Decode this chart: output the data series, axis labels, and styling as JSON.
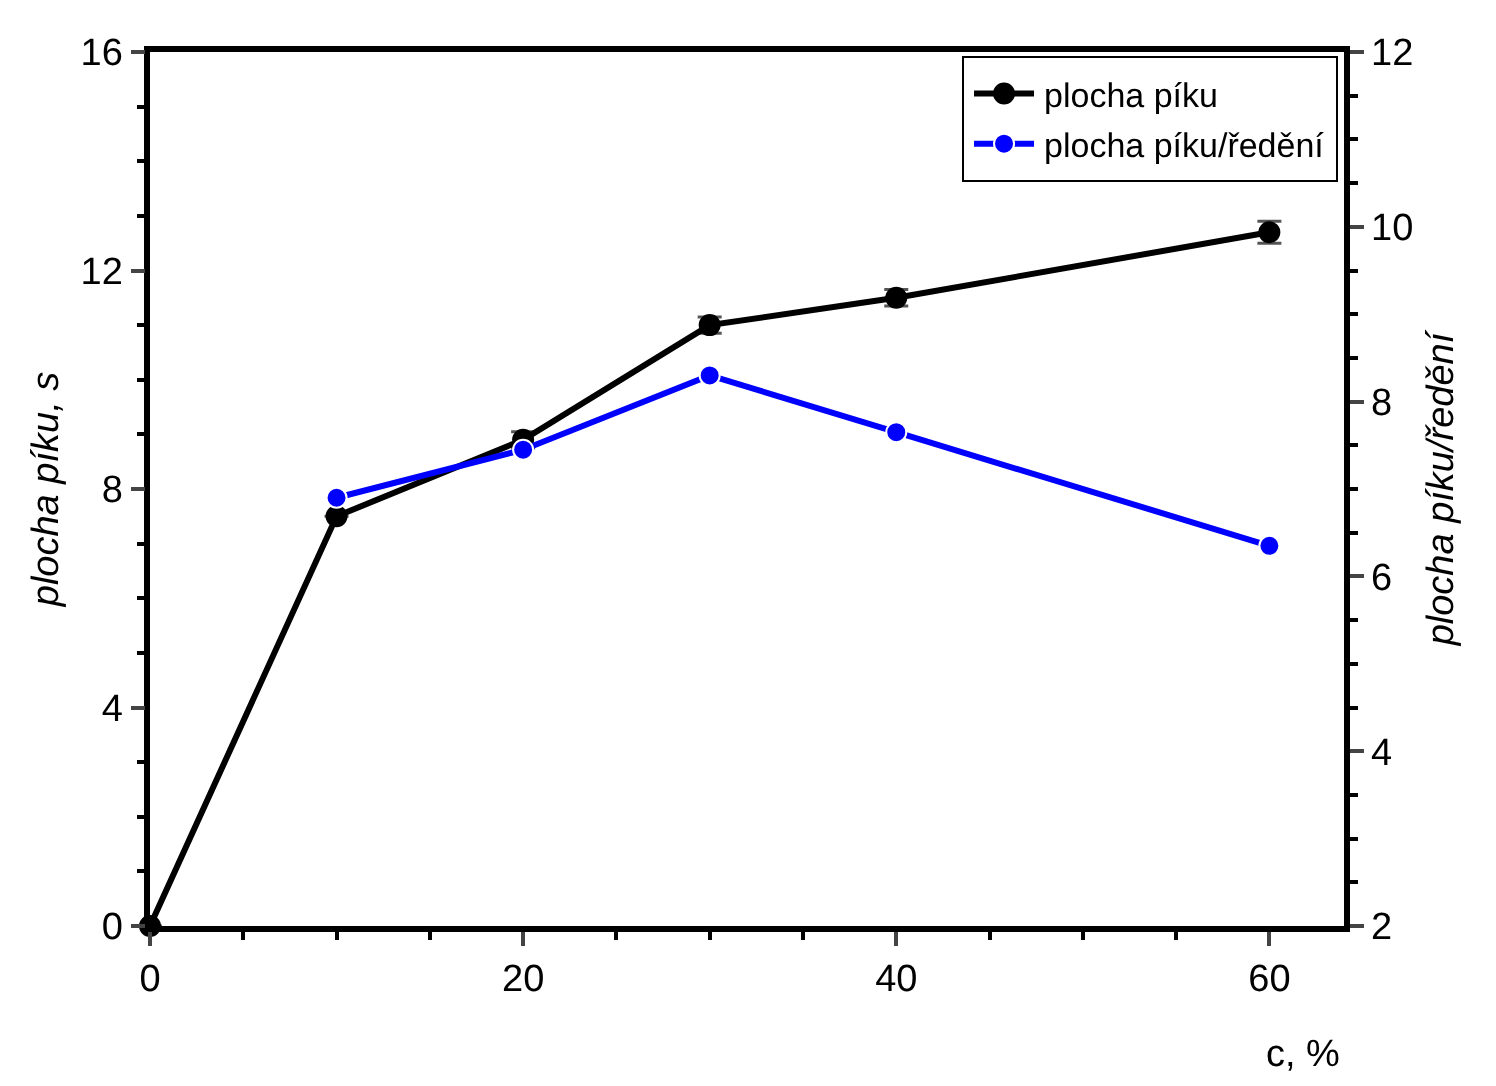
{
  "chart_data": {
    "type": "line",
    "xlabel": "c, %",
    "ylabel": "plocha píku, s",
    "y2label": "plocha píku/ředění",
    "xlim": [
      0,
      64
    ],
    "xticks": [
      0,
      20,
      40,
      60
    ],
    "ylim": [
      0,
      16
    ],
    "yticks": [
      0,
      4,
      8,
      12,
      16
    ],
    "y2lim": [
      2,
      12
    ],
    "y2ticks": [
      2,
      4,
      6,
      8,
      10,
      12
    ],
    "marker": "circle",
    "legend": "top right",
    "series": [
      {
        "name": "plocha píku",
        "color": "#000000",
        "x": [
          0,
          10,
          20,
          30,
          40,
          60
        ],
        "values": [
          0,
          7.5,
          8.9,
          11.0,
          11.5,
          12.7
        ],
        "errors": [
          null,
          null,
          0.15,
          0.15,
          0.15,
          0.2
        ]
      },
      {
        "name": "plocha píku/ředění",
        "color": "#0000ff",
        "axis": "y2",
        "x": [
          10,
          20,
          30,
          40,
          60
        ],
        "values": [
          6.9,
          7.45,
          8.3,
          7.65,
          6.35
        ]
      }
    ]
  }
}
